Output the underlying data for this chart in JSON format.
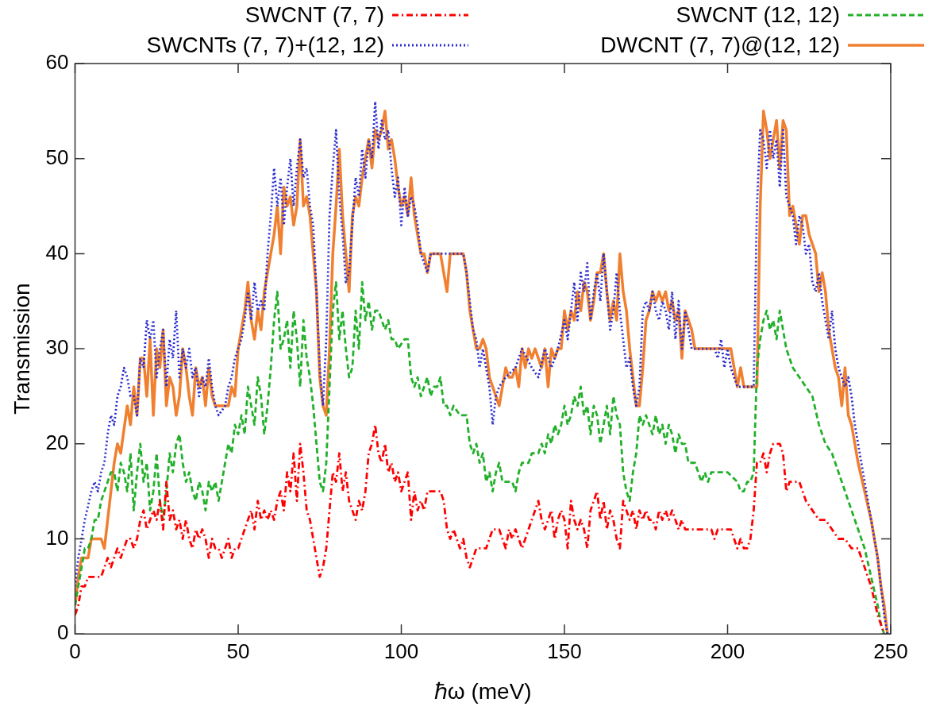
{
  "chart_data": {
    "type": "line",
    "xlabel": "ℏω (meV)",
    "ylabel": "Transmission",
    "xlim": [
      0,
      250
    ],
    "xticks": [
      0,
      50,
      100,
      150,
      200,
      250
    ],
    "ylim": [
      0,
      60
    ],
    "yticks": [
      0,
      10,
      20,
      30,
      40,
      50,
      60
    ],
    "grid": false,
    "legend": "top",
    "marker": "none",
    "series": [
      {
        "name": "SWCNT (7, 7)",
        "color": "#ff0000",
        "line_style": "dashdot",
        "x": [
          0,
          1,
          2,
          3,
          4,
          6,
          8,
          9,
          10,
          11,
          12,
          13,
          14,
          15,
          16,
          17,
          18,
          19,
          20,
          21,
          22,
          23,
          24,
          25,
          26,
          27,
          28,
          29,
          30,
          31,
          32,
          33,
          34,
          35,
          36,
          37,
          38,
          39,
          40,
          41,
          42,
          43,
          44,
          45,
          46,
          47,
          48,
          49,
          50,
          51,
          52,
          53,
          54,
          55,
          56,
          57,
          58,
          59,
          60,
          61,
          62,
          63,
          64,
          65,
          66,
          67,
          68,
          69,
          70,
          71,
          72,
          73,
          74,
          75,
          76,
          77,
          78,
          79,
          80,
          81,
          82,
          83,
          84,
          85,
          86,
          87,
          88,
          89,
          90,
          91,
          92,
          93,
          94,
          95,
          96,
          97,
          98,
          99,
          100,
          101,
          102,
          103,
          104,
          105,
          106,
          107,
          108,
          110,
          112,
          113,
          114,
          115,
          116,
          117,
          118,
          119,
          120,
          121,
          122,
          123,
          124,
          126,
          127,
          128,
          130,
          131,
          132,
          133,
          134,
          135,
          136,
          137,
          138,
          139,
          140,
          141,
          142,
          143,
          144,
          145,
          146,
          147,
          148,
          149,
          150,
          151,
          152,
          153,
          154,
          155,
          156,
          157,
          158,
          159,
          160,
          161,
          162,
          163,
          164,
          165,
          166,
          167,
          168,
          169,
          170,
          171,
          172,
          173,
          174,
          175,
          176,
          177,
          178,
          179,
          180,
          181,
          182,
          183,
          184,
          185,
          186,
          187,
          190,
          195,
          196,
          197,
          200,
          201,
          202,
          203,
          204,
          205,
          206,
          207,
          208,
          209,
          210,
          211,
          212,
          213,
          214,
          216,
          217,
          218,
          219,
          220,
          222,
          224,
          226,
          228,
          230,
          232,
          234,
          236,
          238,
          240,
          242,
          244,
          246,
          248
        ],
        "values": [
          2,
          3,
          5,
          5,
          6,
          6,
          6,
          7,
          8,
          7,
          8,
          9,
          8,
          9,
          10,
          10,
          9,
          10,
          12,
          13,
          11,
          12,
          13,
          12,
          14,
          11,
          16,
          12,
          13,
          11,
          12,
          10,
          12,
          10,
          9,
          11,
          10,
          11,
          10,
          8,
          10,
          9,
          9,
          8,
          9,
          10,
          8,
          9,
          9,
          10,
          11,
          12,
          13,
          11,
          14,
          12,
          13,
          12,
          13,
          12,
          14,
          15,
          13,
          17,
          15,
          19,
          14,
          20,
          17,
          13,
          12,
          10,
          8,
          6,
          7,
          9,
          13,
          17,
          16,
          19,
          15,
          17,
          14,
          13,
          12,
          14,
          13,
          15,
          19,
          20,
          22,
          19,
          18,
          20,
          17,
          18,
          16,
          17,
          15,
          16,
          17,
          12,
          15,
          13,
          14,
          13,
          15,
          15,
          15,
          14,
          11,
          10,
          11,
          10,
          9,
          10,
          8,
          7,
          8,
          9,
          9,
          9,
          10,
          11,
          11,
          10,
          9,
          11,
          10,
          11,
          10,
          9,
          10,
          11,
          12,
          13,
          14,
          12,
          11,
          12,
          13,
          10,
          12,
          13,
          12,
          9,
          14,
          12,
          11,
          12,
          11,
          9,
          13,
          14,
          15,
          12,
          14,
          11,
          13,
          12,
          10,
          9,
          14,
          13,
          12,
          13,
          11,
          13,
          12,
          13,
          12,
          12,
          11,
          13,
          12,
          13,
          12,
          13,
          12,
          11,
          12,
          11,
          11,
          11,
          10,
          11,
          11,
          11,
          10,
          9,
          10,
          9,
          9,
          10,
          13,
          18,
          18,
          19,
          17,
          19,
          20,
          20,
          19,
          15,
          16,
          16,
          16,
          14,
          13,
          12,
          12,
          11,
          10,
          10,
          9,
          9,
          7,
          5,
          2,
          0
        ]
      },
      {
        "name": "SWCNT (12, 12)",
        "color": "#22b02a",
        "line_style": "dashed",
        "x": [
          0,
          1,
          2,
          3,
          4,
          5,
          6,
          7,
          8,
          9,
          10,
          11,
          12,
          13,
          14,
          15,
          16,
          17,
          18,
          19,
          20,
          21,
          22,
          23,
          24,
          25,
          26,
          27,
          28,
          29,
          30,
          31,
          32,
          33,
          34,
          35,
          36,
          37,
          38,
          39,
          40,
          41,
          42,
          43,
          44,
          45,
          46,
          47,
          48,
          49,
          50,
          51,
          52,
          53,
          54,
          55,
          56,
          57,
          58,
          59,
          60,
          61,
          62,
          63,
          64,
          65,
          66,
          67,
          68,
          69,
          70,
          71,
          72,
          73,
          74,
          75,
          76,
          77,
          78,
          79,
          80,
          81,
          82,
          83,
          84,
          85,
          86,
          87,
          88,
          89,
          90,
          91,
          92,
          93,
          94,
          95,
          96,
          97,
          98,
          99,
          101,
          102,
          103,
          104,
          105,
          106,
          107,
          108,
          109,
          110,
          111,
          112,
          113,
          114,
          115,
          116,
          118,
          120,
          121,
          122,
          123,
          124,
          125,
          126,
          127,
          128,
          129,
          130,
          131,
          134,
          135,
          136,
          137,
          139,
          140,
          142,
          143,
          144,
          145,
          146,
          147,
          148,
          149,
          150,
          151,
          152,
          153,
          154,
          155,
          156,
          157,
          158,
          159,
          160,
          161,
          162,
          163,
          164,
          165,
          166,
          167,
          168,
          169,
          170,
          171,
          172,
          173,
          174,
          175,
          176,
          177,
          178,
          179,
          180,
          181,
          182,
          183,
          184,
          185,
          186,
          187,
          188,
          189,
          190,
          191,
          192,
          193,
          194,
          195,
          200,
          203,
          204,
          205,
          206,
          207,
          208,
          209,
          210,
          211,
          212,
          213,
          214,
          215,
          216,
          218,
          220,
          222,
          224,
          226,
          228,
          230,
          232,
          234,
          236,
          238,
          240,
          242,
          244,
          246,
          247,
          248
        ],
        "values": [
          3,
          5,
          7,
          9,
          9,
          10,
          12,
          12,
          14,
          15,
          16,
          17,
          17,
          15,
          18,
          17,
          15,
          19,
          13,
          17,
          20,
          16,
          18,
          13,
          15,
          19,
          14,
          12,
          15,
          19,
          17,
          20,
          21,
          18,
          16,
          17,
          15,
          14,
          16,
          15,
          13,
          16,
          15,
          16,
          14,
          16,
          18,
          20,
          19,
          22,
          21,
          23,
          21,
          26,
          24,
          22,
          27,
          25,
          21,
          24,
          28,
          33,
          36,
          30,
          31,
          33,
          28,
          34,
          31,
          26,
          33,
          29,
          27,
          24,
          20,
          16,
          15,
          18,
          26,
          34,
          37,
          31,
          34,
          30,
          27,
          28,
          34,
          30,
          37,
          33,
          35,
          32,
          34,
          34,
          33,
          32,
          33,
          31,
          31,
          30,
          31,
          31,
          27,
          26,
          27,
          25,
          26,
          27,
          25,
          26,
          26,
          27,
          24,
          24,
          23,
          24,
          23,
          23,
          20,
          19,
          20,
          18,
          19,
          16,
          17,
          15,
          17,
          18,
          16,
          16,
          15,
          17,
          18,
          18,
          19,
          19,
          20,
          19,
          21,
          20,
          22,
          21,
          22,
          24,
          22,
          23,
          25,
          24,
          26,
          23,
          24,
          21,
          24,
          23,
          20,
          22,
          24,
          21,
          25,
          23,
          22,
          17,
          15,
          14,
          17,
          19,
          23,
          22,
          23,
          22,
          21,
          23,
          21,
          22,
          20,
          22,
          21,
          19,
          21,
          20,
          20,
          18,
          18,
          18,
          17,
          16,
          17,
          16,
          17,
          17,
          16,
          15,
          15,
          16,
          16,
          17,
          28,
          31,
          33,
          34,
          32,
          33,
          31,
          34,
          30,
          28,
          27,
          26,
          25,
          22,
          20,
          19,
          17,
          15,
          13,
          11,
          9,
          6,
          3,
          1,
          0
        ]
      },
      {
        "name": "SWCNTs (7, 7)+(12, 12)",
        "color": "#2b2bd0",
        "line_style": "dotted",
        "x": [
          0,
          1,
          2,
          3,
          5,
          6,
          7,
          8,
          9,
          10,
          11,
          12,
          13,
          14,
          15,
          16,
          17,
          18,
          19,
          20,
          21,
          22,
          23,
          24,
          25,
          26,
          27,
          28,
          29,
          30,
          31,
          32,
          33,
          34,
          35,
          36,
          37,
          38,
          39,
          40,
          41,
          42,
          43,
          44,
          46,
          47,
          48,
          49,
          50,
          51,
          52,
          53,
          54,
          55,
          56,
          57,
          58,
          59,
          60,
          61,
          62,
          63,
          64,
          65,
          66,
          67,
          68,
          69,
          70,
          71,
          72,
          73,
          74,
          75,
          76,
          77,
          78,
          79,
          80,
          81,
          82,
          83,
          84,
          85,
          86,
          87,
          88,
          89,
          90,
          91,
          92,
          93,
          94,
          95,
          96,
          97,
          98,
          99,
          100,
          101,
          102,
          103,
          104,
          105,
          106,
          107,
          108,
          109,
          119,
          120,
          121,
          122,
          123,
          124,
          125,
          126,
          127,
          128,
          129,
          130,
          132,
          135,
          137,
          140,
          142,
          144,
          146,
          148,
          150,
          151,
          152,
          153,
          154,
          155,
          156,
          157,
          158,
          159,
          160,
          161,
          162,
          163,
          164,
          165,
          166,
          167,
          168,
          169,
          170,
          171,
          172,
          173,
          174,
          175,
          176,
          177,
          178,
          179,
          180,
          181,
          182,
          183,
          184,
          185,
          186,
          187,
          188,
          189,
          190,
          196,
          197,
          198,
          199,
          200,
          201,
          203,
          205,
          207,
          208,
          209,
          210,
          211,
          212,
          213,
          214,
          215,
          216,
          217,
          218,
          219,
          220,
          221,
          222,
          223,
          224,
          225,
          226,
          227,
          228,
          229,
          230,
          231,
          232,
          233,
          234,
          235,
          236,
          237,
          238,
          239,
          240,
          241,
          242,
          243,
          244,
          245,
          246,
          247,
          248,
          249
        ],
        "values": [
          5,
          8,
          10,
          12,
          15,
          16,
          15,
          17,
          18,
          21,
          23,
          22,
          25,
          26,
          28,
          27,
          25,
          25,
          23,
          29,
          28,
          33,
          31,
          33,
          27,
          30,
          32,
          26,
          31,
          29,
          34,
          27,
          30,
          28,
          30,
          27,
          28,
          25,
          27,
          26,
          29,
          26,
          24,
          23,
          24,
          26,
          27,
          29,
          30,
          31,
          33,
          36,
          33,
          37,
          34,
          35,
          34,
          40,
          44,
          49,
          45,
          48,
          43,
          47,
          50,
          45,
          49,
          52,
          48,
          49,
          45,
          43,
          36,
          28,
          24,
          31,
          44,
          49,
          53,
          46,
          42,
          37,
          38,
          43,
          48,
          46,
          51,
          48,
          52,
          50,
          56,
          51,
          54,
          52,
          53,
          49,
          46,
          48,
          43,
          47,
          44,
          46,
          45,
          43,
          40,
          39,
          38,
          40,
          40,
          38,
          35,
          32,
          31,
          28,
          30,
          28,
          26,
          22,
          25,
          26,
          27,
          28,
          30,
          28,
          27,
          30,
          28,
          30,
          33,
          31,
          34,
          37,
          33,
          38,
          36,
          39,
          33,
          36,
          38,
          35,
          40,
          36,
          32,
          34,
          38,
          34,
          31,
          28,
          29,
          26,
          24,
          26,
          34,
          35,
          34,
          36,
          34,
          33,
          35,
          34,
          32,
          36,
          31,
          35,
          30,
          34,
          32,
          30,
          30,
          30,
          29,
          31,
          28,
          30,
          28,
          26,
          26,
          26,
          26,
          45,
          53,
          52,
          49,
          53,
          50,
          52,
          47,
          53,
          46,
          45,
          44,
          41,
          44,
          43,
          40,
          41,
          37,
          36,
          38,
          35,
          33,
          31,
          34,
          30,
          28,
          27,
          26,
          27,
          25,
          22,
          20,
          18,
          16,
          14,
          12,
          10,
          8,
          5,
          2,
          0
        ]
      },
      {
        "name": "DWCNT (7, 7)@(12, 12)",
        "color": "#f08030",
        "line_style": "solid",
        "x": [
          0,
          1,
          2,
          4,
          5,
          8,
          9,
          10,
          12,
          13,
          14,
          16,
          17,
          18,
          19,
          20,
          21,
          22,
          23,
          24,
          25,
          26,
          27,
          28,
          29,
          30,
          31,
          32,
          33,
          34,
          35,
          36,
          37,
          38,
          39,
          40,
          41,
          42,
          43,
          47,
          48,
          49,
          50,
          52,
          53,
          54,
          55,
          56,
          57,
          58,
          60,
          61,
          62,
          63,
          64,
          65,
          66,
          67,
          68,
          69,
          70,
          71,
          72,
          73,
          74,
          75,
          76,
          77,
          78,
          79,
          80,
          81,
          82,
          83,
          84,
          85,
          86,
          87,
          88,
          89,
          90,
          91,
          92,
          93,
          94,
          95,
          96,
          97,
          98,
          99,
          100,
          101,
          102,
          103,
          104,
          105,
          106,
          107,
          108,
          109,
          112,
          113,
          114,
          115,
          119,
          120,
          121,
          122,
          123,
          124,
          125,
          126,
          127,
          128,
          129,
          130,
          131,
          132,
          133,
          134,
          135,
          136,
          137,
          138,
          139,
          140,
          141,
          143,
          144,
          145,
          146,
          147,
          148,
          149,
          150,
          151,
          152,
          153,
          154,
          155,
          156,
          157,
          158,
          159,
          160,
          161,
          162,
          163,
          164,
          165,
          166,
          167,
          168,
          169,
          170,
          171,
          172,
          173,
          174,
          175,
          176,
          177,
          178,
          179,
          180,
          181,
          182,
          183,
          184,
          185,
          186,
          187,
          188,
          189,
          190,
          201,
          202,
          203,
          204,
          205,
          207,
          209,
          210,
          211,
          212,
          213,
          214,
          215,
          216,
          217,
          218,
          219,
          220,
          221,
          222,
          223,
          224,
          225,
          227,
          228,
          229,
          230,
          231,
          232,
          233,
          234,
          235,
          236,
          237,
          238,
          239,
          240,
          242,
          244,
          245,
          246,
          247,
          248,
          249
        ],
        "values": [
          3,
          6,
          8,
          8,
          10,
          10,
          9,
          12,
          18,
          20,
          19,
          24,
          22,
          26,
          23,
          29,
          29,
          25,
          31,
          23,
          30,
          28,
          32,
          24,
          27,
          26,
          23,
          25,
          30,
          28,
          25,
          23,
          28,
          26,
          27,
          24,
          28,
          25,
          24,
          24,
          26,
          25,
          30,
          34,
          37,
          33,
          31,
          34,
          32,
          36,
          40,
          42,
          45,
          40,
          47,
          45,
          46,
          43,
          45,
          52,
          45,
          46,
          44,
          40,
          36,
          27,
          24,
          23,
          30,
          40,
          45,
          51,
          44,
          40,
          36,
          44,
          46,
          45,
          48,
          50,
          52,
          49,
          53,
          52,
          53,
          55,
          51,
          52,
          50,
          47,
          45,
          46,
          44,
          48,
          44,
          42,
          40,
          40,
          38,
          40,
          40,
          38,
          36,
          40,
          40,
          38,
          34,
          32,
          30,
          30,
          31,
          30,
          27,
          26,
          25,
          24,
          26,
          28,
          27,
          27,
          28,
          26,
          30,
          28,
          30,
          29,
          30,
          28,
          30,
          26,
          30,
          29,
          30,
          30,
          34,
          32,
          34,
          33,
          36,
          34,
          37,
          36,
          33,
          35,
          38,
          38,
          40,
          36,
          33,
          35,
          33,
          40,
          36,
          34,
          30,
          27,
          24,
          24,
          28,
          33,
          34,
          36,
          35,
          36,
          35,
          36,
          34,
          35,
          33,
          34,
          29,
          34,
          33,
          32,
          30,
          30,
          28,
          26,
          28,
          26,
          26,
          26,
          45,
          55,
          53,
          50,
          52,
          54,
          49,
          54,
          53,
          44,
          45,
          43,
          41,
          44,
          44,
          42,
          40,
          36,
          38,
          36,
          32,
          30,
          28,
          27,
          24,
          28,
          23,
          22,
          20,
          18,
          15,
          12,
          10,
          8,
          5,
          3,
          0
        ]
      }
    ]
  }
}
